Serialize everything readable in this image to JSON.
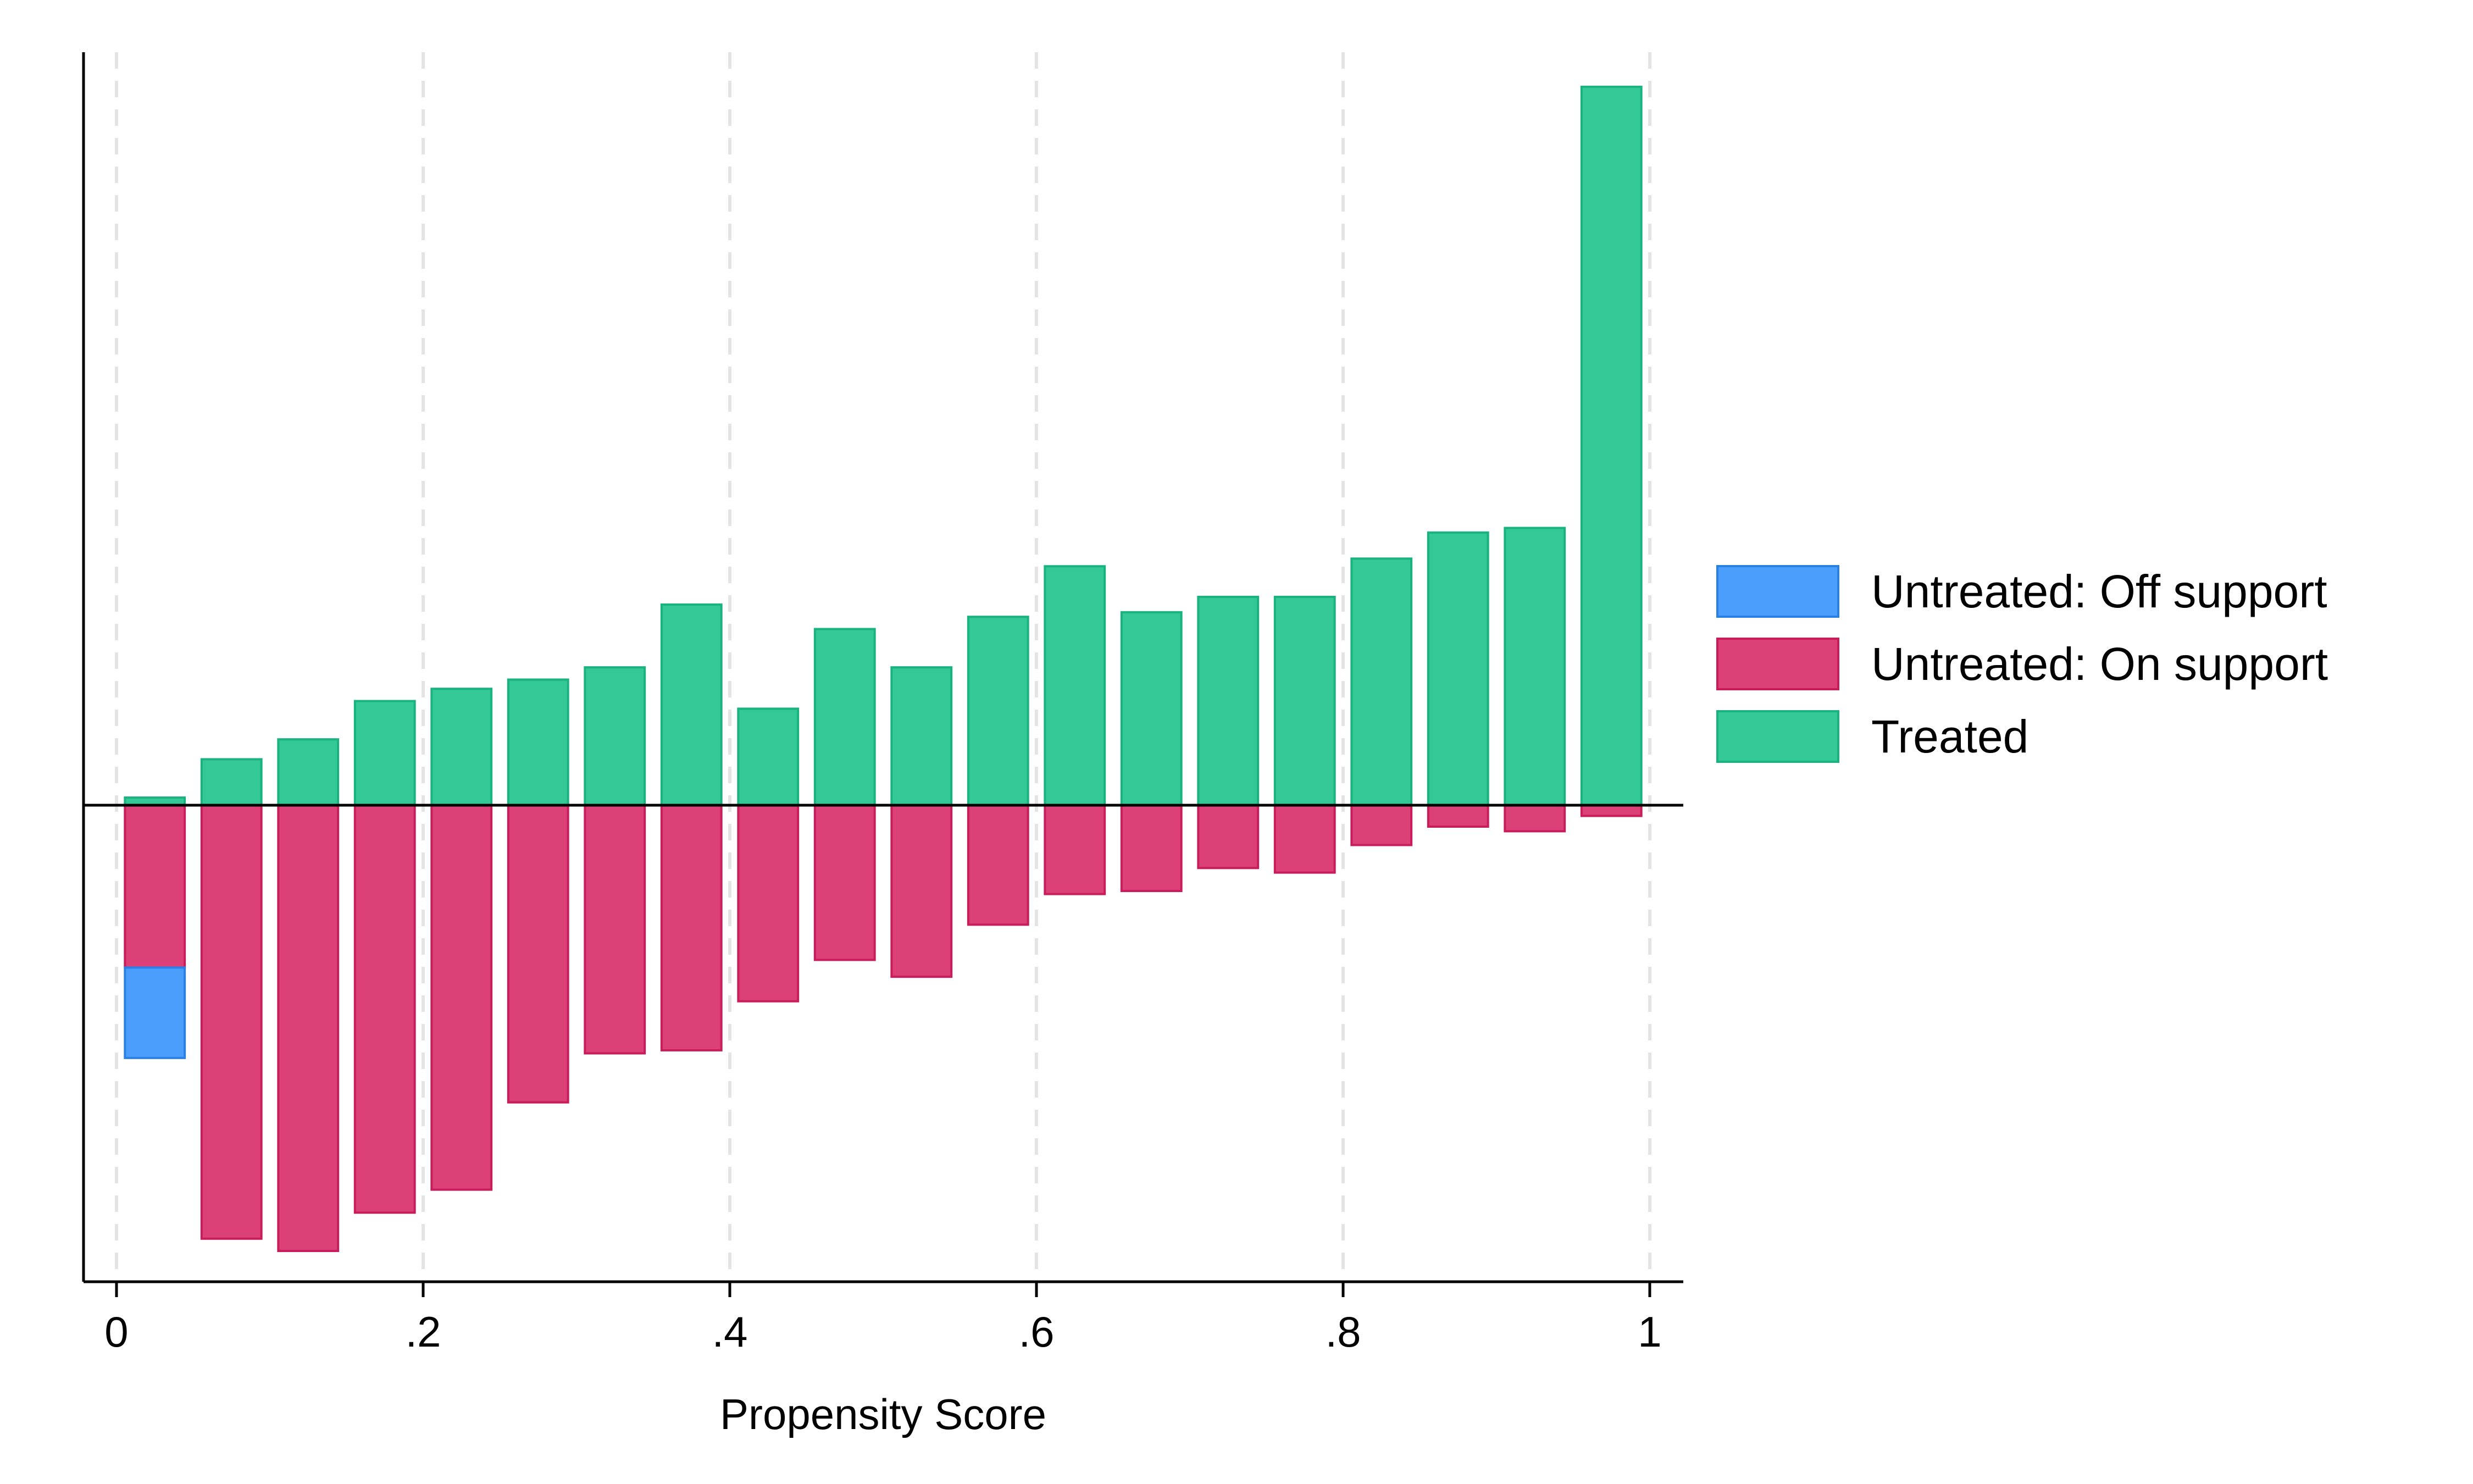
{
  "chart_data": {
    "type": "bar",
    "title": "",
    "xlabel": "Propensity Score",
    "ylabel": "",
    "xlim": [
      -0.04,
      1.04
    ],
    "ylim": [
      -0.31,
      0.49
    ],
    "x_ticks": [
      "0",
      ".2",
      ".4",
      ".6",
      ".8",
      "1"
    ],
    "x_tick_values": [
      0,
      0.2,
      0.4,
      0.6,
      0.8,
      1
    ],
    "grid": "vertical dashed at x ticks",
    "legend_position": "right",
    "bin_centers": [
      0.025,
      0.075,
      0.125,
      0.175,
      0.225,
      0.275,
      0.325,
      0.375,
      0.425,
      0.475,
      0.525,
      0.575,
      0.625,
      0.675,
      0.725,
      0.775,
      0.825,
      0.875,
      0.925,
      0.975
    ],
    "bin_width": 0.039,
    "series": [
      {
        "name": "Untreated: Off support",
        "color": "#4b9efc",
        "stroke": "#2b80e6",
        "direction": "down",
        "stack_base": [
          0,
          0,
          0,
          0,
          0,
          0,
          0,
          0,
          0,
          0,
          0,
          0,
          0,
          0,
          0,
          0,
          0,
          0,
          0,
          0
        ],
        "values": [
          0.059,
          0,
          0,
          0,
          0,
          0,
          0,
          0,
          0,
          0,
          0,
          0,
          0,
          0,
          0,
          0,
          0,
          0,
          0,
          0
        ]
      },
      {
        "name": "Untreated: On support",
        "color": "#db4177",
        "stroke": "#c91d5b",
        "direction": "down",
        "values": [
          0.106,
          0.283,
          0.291,
          0.266,
          0.251,
          0.194,
          0.162,
          0.16,
          0.128,
          0.101,
          0.112,
          0.078,
          0.058,
          0.056,
          0.041,
          0.044,
          0.026,
          0.014,
          0.017,
          0.007
        ]
      },
      {
        "name": "Treated",
        "color": "#33c896",
        "stroke": "#1ab27e",
        "direction": "up",
        "values": [
          0.005,
          0.03,
          0.043,
          0.068,
          0.076,
          0.082,
          0.09,
          0.131,
          0.063,
          0.115,
          0.09,
          0.123,
          0.156,
          0.126,
          0.136,
          0.136,
          0.161,
          0.178,
          0.181,
          0.469
        ]
      }
    ]
  }
}
